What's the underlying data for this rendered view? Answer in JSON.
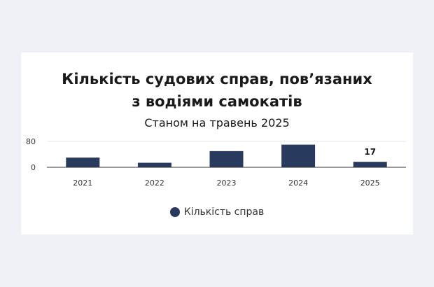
{
  "chart_data": {
    "type": "bar",
    "title_lines": [
      "Кількість судових справ, пов’язаних",
      "з водіями самокатів"
    ],
    "subtitle": "Станом на травень 2025",
    "categories": [
      "2021",
      "2022",
      "2023",
      "2024",
      "2025"
    ],
    "series": [
      {
        "name": "Кількість справ",
        "values": [
          30,
          14,
          50,
          70,
          17
        ]
      }
    ],
    "data_labels": [
      {
        "category": "2025",
        "text": "17"
      }
    ],
    "y_ticks": [
      "0",
      "80"
    ],
    "ylim": [
      0,
      80
    ],
    "xlabel": "",
    "ylabel": "",
    "grid": true,
    "legend_position": "bottom",
    "colors": {
      "bar": "#283a5e",
      "grid": "#e3e6ea",
      "axis": "#333333",
      "text": "#1a1a1a",
      "tick_text": "#333333"
    }
  }
}
